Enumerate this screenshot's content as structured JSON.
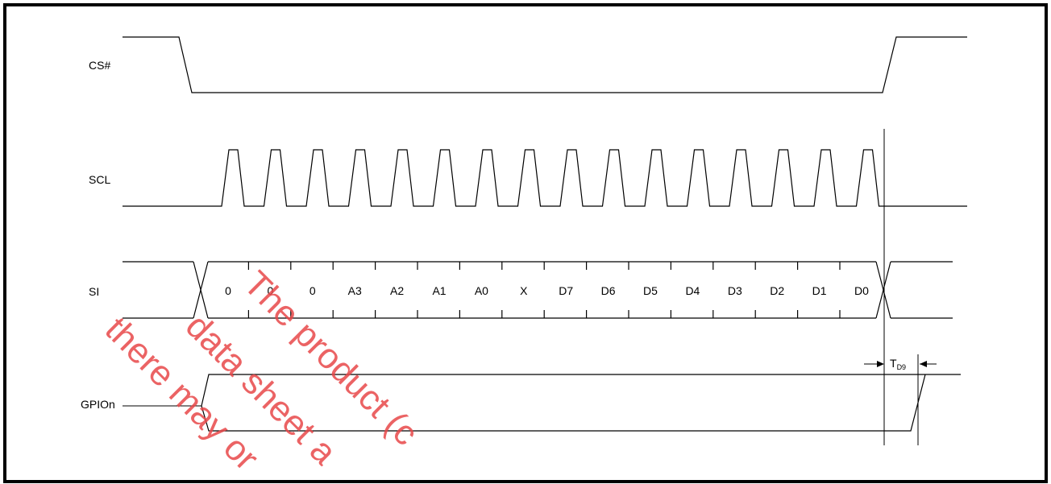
{
  "signals": {
    "cs": "CS#",
    "scl": "SCL",
    "si": "SI",
    "gpio": "GPIOn"
  },
  "si_bits": [
    "0",
    "0",
    "0",
    "A3",
    "A2",
    "A1",
    "A0",
    "X",
    "D7",
    "D6",
    "D5",
    "D4",
    "D3",
    "D2",
    "D1",
    "D0"
  ],
  "timing": {
    "td9_main": "T",
    "td9_sub": "D9"
  },
  "watermark": {
    "line1": "The product (c",
    "line2": "data sheet a",
    "line3": "there may or"
  },
  "colors": {
    "watermark": "#e8484a",
    "line": "#000000"
  }
}
